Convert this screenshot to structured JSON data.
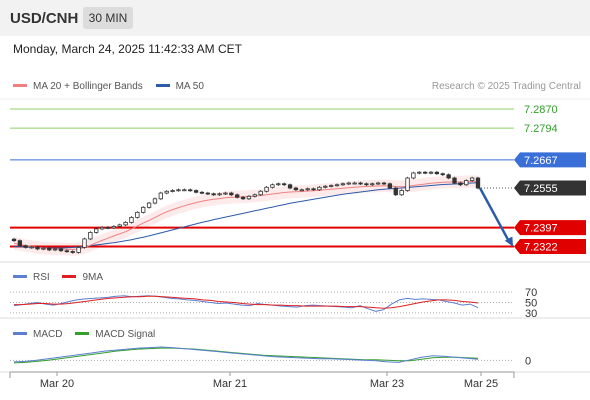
{
  "header": {
    "symbol": "USD/CNH",
    "timeframe": "30 MIN"
  },
  "datetime": "Monday, March 24, 2025 11:42:33 AM CET",
  "legend": {
    "bollinger_label": "MA 20 + Bollinger Bands",
    "bollinger_color": "#f08080",
    "ma50_label": "MA 50",
    "ma50_color": "#2c5ba8"
  },
  "research": "Research © 2025 Trading Central",
  "rsi_legend": {
    "rsi_label": "RSI",
    "rsi_color": "#5b7fd1",
    "ma_label": "9MA",
    "ma_color": "#e02020"
  },
  "macd_legend": {
    "macd_label": "MACD",
    "macd_color": "#5b7fd1",
    "signal_label": "MACD Signal",
    "signal_color": "#33a02c"
  },
  "colors": {
    "target": "#8fd16a",
    "pivot": "#3a6fd8",
    "current": "#333333",
    "support": "#e00000",
    "arrow": "#2c5ba8",
    "candle_up": "#8b2222",
    "candle_down": "#b22222"
  },
  "chart_data": [
    {
      "type": "candlestick",
      "title": "USD/CNH",
      "ylim": [
        7.226,
        7.291
      ],
      "x_ticks": [
        "Mar 20",
        "Mar 21",
        "Mar 23",
        "Mar 25"
      ],
      "levels": [
        {
          "value": 7.287,
          "label": "7.2870",
          "kind": "target"
        },
        {
          "value": 7.2794,
          "label": "7.2794",
          "kind": "target"
        },
        {
          "value": 7.2667,
          "label": "7.2667",
          "kind": "pivot"
        },
        {
          "value": 7.2555,
          "label": "7.2555",
          "kind": "current"
        },
        {
          "value": 7.2397,
          "label": "7.2397",
          "kind": "support"
        },
        {
          "value": 7.2322,
          "label": "7.2322",
          "kind": "support"
        }
      ],
      "close": [
        7.2345,
        7.2325,
        7.2318,
        7.232,
        7.2312,
        7.2315,
        7.2308,
        7.2312,
        7.2305,
        7.2302,
        7.2298,
        7.2318,
        7.2352,
        7.2378,
        7.2392,
        7.2398,
        7.2396,
        7.2402,
        7.2408,
        7.2418,
        7.2438,
        7.2458,
        7.2478,
        7.2495,
        7.2512,
        7.2535,
        7.2542,
        7.2545,
        7.2548,
        7.2548,
        7.2545,
        7.2538,
        7.2535,
        7.2532,
        7.2528,
        7.2532,
        7.2535,
        7.2528,
        7.2518,
        7.2512,
        7.2522,
        7.2528,
        7.2542,
        7.2558,
        7.2568,
        7.2572,
        7.2568,
        7.2555,
        7.2548,
        7.2548,
        7.2552,
        7.2548,
        7.2558,
        7.2562,
        7.2565,
        7.2568,
        7.2572,
        7.2575,
        7.2575,
        7.2572,
        7.2568,
        7.2572,
        7.2575,
        7.2572,
        7.2555,
        7.2528,
        7.2545,
        7.2595,
        7.2615,
        7.2618,
        7.2615,
        7.2618,
        7.2612,
        7.2608,
        7.2595,
        7.2575,
        7.2568,
        7.2585,
        7.2595,
        7.2555
      ],
      "ma20": [
        7.2335,
        7.233,
        7.2325,
        7.2322,
        7.2318,
        7.2316,
        7.2314,
        7.2313,
        7.2312,
        7.2311,
        7.231,
        7.2312,
        7.2318,
        7.2327,
        7.2337,
        7.2346,
        7.2355,
        7.2364,
        7.2372,
        7.2381,
        7.2392,
        7.2403,
        7.2415,
        7.2426,
        7.2437,
        7.245,
        7.246,
        7.2469,
        7.2477,
        7.2484,
        7.2491,
        7.2497,
        7.2502,
        7.2507,
        7.251,
        7.2513,
        7.2516,
        7.2518,
        7.2519,
        7.252,
        7.2521,
        7.2523,
        7.2525,
        7.2528,
        7.2531,
        7.2534,
        7.2537,
        7.2539,
        7.254,
        7.2541,
        7.2543,
        7.2544,
        7.2546,
        7.2548,
        7.255,
        7.2552,
        7.2554,
        7.2556,
        7.2558,
        7.256,
        7.2561,
        7.2562,
        7.2563,
        7.2564,
        7.2563,
        7.2561,
        7.256,
        7.2562,
        7.2565,
        7.2568,
        7.2571,
        7.2574,
        7.2576,
        7.2578,
        7.2579,
        7.2579,
        7.2579,
        7.258,
        7.2581,
        7.258
      ],
      "ma50": [
        7.2322,
        7.2321,
        7.232,
        7.2319,
        7.2318,
        7.2317,
        7.2316,
        7.2316,
        7.2316,
        7.2317,
        7.2318,
        7.232,
        7.2322,
        7.2325,
        7.2328,
        7.2331,
        7.2334,
        7.2337,
        7.2341,
        7.2345,
        7.2349,
        7.2354,
        7.2359,
        7.2364,
        7.237,
        7.2376,
        7.2382,
        7.2388,
        7.2394,
        7.24,
        7.2406,
        7.2412,
        7.2418,
        7.2423,
        7.2429,
        7.2434,
        7.2439,
        7.2444,
        7.2449,
        7.2454,
        7.2459,
        7.2464,
        7.2469,
        7.2474,
        7.2479,
        7.2484,
        7.2489,
        7.2494,
        7.2498,
        7.2502,
        7.2506,
        7.251,
        7.2514,
        7.2518,
        7.2522,
        7.2526,
        7.253,
        7.2533,
        7.2536,
        7.2539,
        7.2542,
        7.2545,
        7.2548,
        7.255,
        7.2552,
        7.2553,
        7.2555,
        7.2557,
        7.2559,
        7.2561,
        7.2563,
        7.2565,
        7.2567,
        7.2569,
        7.257,
        7.2571,
        7.2572,
        7.2574,
        7.2575,
        7.2576
      ],
      "band_width": 0.0025,
      "forecast": {
        "from": 7.2555,
        "to": 7.2322
      }
    },
    {
      "type": "line",
      "title": "RSI",
      "levels": [
        70,
        50,
        30
      ],
      "ylim": [
        20,
        80
      ],
      "series": [
        {
          "name": "RSI",
          "values": [
            44,
            46,
            48,
            50,
            47,
            45,
            48,
            52,
            55,
            57,
            58,
            59,
            60,
            62,
            63,
            61,
            62,
            63,
            62,
            60,
            58,
            57,
            55,
            54,
            52,
            50,
            48,
            49,
            47,
            45,
            44,
            48,
            46,
            45,
            43,
            42,
            41,
            44,
            45,
            44,
            43,
            42,
            41,
            40,
            44,
            38,
            33,
            36,
            47,
            55,
            58,
            56,
            57,
            56,
            55,
            52,
            49,
            45,
            47,
            40
          ]
        },
        {
          "name": "9MA",
          "values": [
            46,
            46,
            47,
            48,
            48,
            47,
            47,
            48,
            50,
            52,
            54,
            56,
            58,
            59,
            60,
            61,
            61,
            62,
            62,
            61,
            60,
            59,
            58,
            57,
            55,
            54,
            52,
            51,
            50,
            48,
            47,
            46,
            46,
            45,
            45,
            44,
            44,
            43,
            43,
            43,
            43,
            43,
            42,
            42,
            42,
            41,
            40,
            39,
            40,
            42,
            45,
            48,
            51,
            53,
            55,
            55,
            54,
            52,
            51,
            49
          ]
        }
      ]
    },
    {
      "type": "line",
      "title": "MACD",
      "levels": [
        0
      ],
      "y_tick": "0",
      "series": [
        {
          "name": "MACD",
          "values": [
            -0.0003,
            -0.0002,
            0.0,
            0.0003,
            0.0006,
            0.0009,
            0.0012,
            0.0015,
            0.0018,
            0.002,
            0.0022,
            0.0024,
            0.0025,
            0.0026,
            0.0025,
            0.0023,
            0.0021,
            0.0019,
            0.0017,
            0.0015,
            0.0013,
            0.0011,
            0.0009,
            0.0007,
            0.0006,
            0.0005,
            0.0004,
            0.0003,
            0.0003,
            0.0002,
            0.0001,
            0.0,
            -0.0001,
            -0.0003,
            -0.0004,
            0.0001,
            0.0006,
            0.0009,
            0.0008,
            0.0006,
            0.0004,
            0.0002
          ]
        },
        {
          "name": "MACD Signal",
          "values": [
            -0.0005,
            -0.0004,
            -0.0002,
            0.0,
            0.0003,
            0.0006,
            0.0009,
            0.0012,
            0.0015,
            0.0018,
            0.002,
            0.0022,
            0.0023,
            0.0024,
            0.0024,
            0.0023,
            0.0022,
            0.002,
            0.0018,
            0.0016,
            0.0014,
            0.0012,
            0.001,
            0.0009,
            0.0008,
            0.0007,
            0.0006,
            0.0005,
            0.0004,
            0.0003,
            0.0002,
            0.0001,
            0.0001,
            0.0,
            -0.0001,
            -0.0001,
            0.0002,
            0.0005,
            0.0006,
            0.0006,
            0.0005,
            0.0004
          ]
        }
      ]
    }
  ]
}
